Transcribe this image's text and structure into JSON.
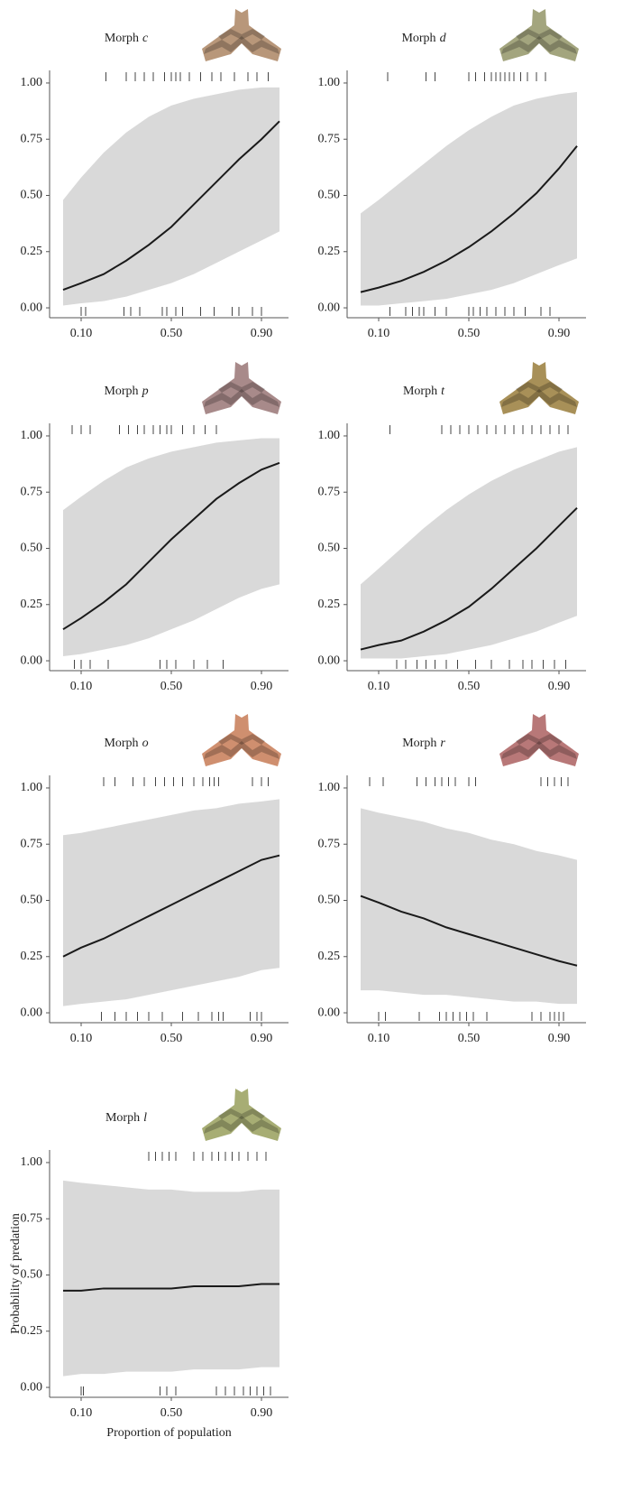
{
  "chart_data": [
    {
      "type": "line",
      "title": "Morph",
      "morph": "c",
      "moth_color": "#b8977a",
      "line_color": "#1a1a1a",
      "band_color": "#d9d9d9",
      "x": [
        0.02,
        0.1,
        0.2,
        0.3,
        0.4,
        0.5,
        0.6,
        0.7,
        0.8,
        0.9,
        0.98
      ],
      "values": [
        0.08,
        0.11,
        0.15,
        0.21,
        0.28,
        0.36,
        0.46,
        0.56,
        0.66,
        0.75,
        0.83
      ],
      "lower": [
        0.01,
        0.02,
        0.03,
        0.05,
        0.08,
        0.11,
        0.15,
        0.2,
        0.25,
        0.3,
        0.34
      ],
      "upper": [
        0.48,
        0.58,
        0.69,
        0.78,
        0.85,
        0.9,
        0.93,
        0.95,
        0.97,
        0.98,
        0.98
      ],
      "rug_top": [
        0.21,
        0.3,
        0.34,
        0.38,
        0.42,
        0.47,
        0.5,
        0.52,
        0.54,
        0.58,
        0.63,
        0.68,
        0.72,
        0.78,
        0.84,
        0.88,
        0.93
      ],
      "rug_bottom": [
        0.1,
        0.12,
        0.29,
        0.32,
        0.36,
        0.46,
        0.48,
        0.52,
        0.55,
        0.63,
        0.69,
        0.77,
        0.8,
        0.86,
        0.9
      ],
      "xlim": [
        -0.04,
        1.02
      ],
      "ylim": [
        -0.044,
        1.056
      ],
      "xticks": [
        {
          "value": 0.1,
          "label": "0.10"
        },
        {
          "value": 0.5,
          "label": "0.50"
        },
        {
          "value": 0.9,
          "label": "0.90"
        }
      ],
      "yticks": [
        {
          "value": 0,
          "label": "0.00"
        },
        {
          "value": 0.25,
          "label": "0.25"
        },
        {
          "value": 0.5,
          "label": "0.50"
        },
        {
          "value": 0.75,
          "label": "0.75"
        },
        {
          "value": 1,
          "label": "1.00"
        }
      ]
    },
    {
      "type": "line",
      "title": "Morph",
      "morph": "d",
      "moth_color": "#a3a57e",
      "line_color": "#1a1a1a",
      "band_color": "#d9d9d9",
      "x": [
        0.02,
        0.1,
        0.2,
        0.3,
        0.4,
        0.5,
        0.6,
        0.7,
        0.8,
        0.9,
        0.98
      ],
      "values": [
        0.07,
        0.09,
        0.12,
        0.16,
        0.21,
        0.27,
        0.34,
        0.42,
        0.51,
        0.62,
        0.72
      ],
      "lower": [
        0.01,
        0.01,
        0.02,
        0.03,
        0.04,
        0.06,
        0.08,
        0.11,
        0.15,
        0.19,
        0.22
      ],
      "upper": [
        0.42,
        0.48,
        0.56,
        0.64,
        0.72,
        0.79,
        0.85,
        0.9,
        0.93,
        0.95,
        0.96
      ],
      "rug_top": [
        0.14,
        0.31,
        0.35,
        0.5,
        0.53,
        0.57,
        0.6,
        0.62,
        0.64,
        0.66,
        0.68,
        0.7,
        0.73,
        0.76,
        0.8,
        0.84
      ],
      "rug_bottom": [
        0.15,
        0.22,
        0.25,
        0.28,
        0.3,
        0.35,
        0.4,
        0.5,
        0.52,
        0.55,
        0.58,
        0.62,
        0.66,
        0.7,
        0.75,
        0.82,
        0.86
      ],
      "xlim": [
        -0.04,
        1.02
      ],
      "ylim": [
        -0.044,
        1.056
      ],
      "xticks": [
        {
          "value": 0.1,
          "label": "0.10"
        },
        {
          "value": 0.5,
          "label": "0.50"
        },
        {
          "value": 0.9,
          "label": "0.90"
        }
      ],
      "yticks": [
        {
          "value": 0,
          "label": "0.00"
        },
        {
          "value": 0.25,
          "label": "0.25"
        },
        {
          "value": 0.5,
          "label": "0.50"
        },
        {
          "value": 0.75,
          "label": "0.75"
        },
        {
          "value": 1,
          "label": "1.00"
        }
      ]
    },
    {
      "type": "line",
      "title": "Morph",
      "morph": "p",
      "moth_color": "#a88a8a",
      "line_color": "#1a1a1a",
      "band_color": "#d9d9d9",
      "x": [
        0.02,
        0.1,
        0.2,
        0.3,
        0.4,
        0.5,
        0.6,
        0.7,
        0.8,
        0.9,
        0.98
      ],
      "values": [
        0.14,
        0.19,
        0.26,
        0.34,
        0.44,
        0.54,
        0.63,
        0.72,
        0.79,
        0.85,
        0.88
      ],
      "lower": [
        0.02,
        0.03,
        0.05,
        0.07,
        0.1,
        0.14,
        0.18,
        0.23,
        0.28,
        0.32,
        0.34
      ],
      "upper": [
        0.67,
        0.73,
        0.8,
        0.86,
        0.9,
        0.93,
        0.95,
        0.97,
        0.98,
        0.99,
        0.99
      ],
      "rug_top": [
        0.06,
        0.1,
        0.14,
        0.27,
        0.31,
        0.35,
        0.38,
        0.42,
        0.45,
        0.48,
        0.5,
        0.55,
        0.6,
        0.65,
        0.7
      ],
      "rug_bottom": [
        0.07,
        0.1,
        0.14,
        0.22,
        0.45,
        0.48,
        0.52,
        0.6,
        0.66,
        0.73
      ],
      "xlim": [
        -0.04,
        1.02
      ],
      "ylim": [
        -0.044,
        1.056
      ],
      "xticks": [
        {
          "value": 0.1,
          "label": "0.10"
        },
        {
          "value": 0.5,
          "label": "0.50"
        },
        {
          "value": 0.9,
          "label": "0.90"
        }
      ],
      "yticks": [
        {
          "value": 0,
          "label": "0.00"
        },
        {
          "value": 0.25,
          "label": "0.25"
        },
        {
          "value": 0.5,
          "label": "0.50"
        },
        {
          "value": 0.75,
          "label": "0.75"
        },
        {
          "value": 1,
          "label": "1.00"
        }
      ]
    },
    {
      "type": "line",
      "title": "Morph",
      "morph": "t",
      "moth_color": "#a89058",
      "line_color": "#1a1a1a",
      "band_color": "#d9d9d9",
      "x": [
        0.02,
        0.1,
        0.2,
        0.3,
        0.4,
        0.5,
        0.6,
        0.7,
        0.8,
        0.9,
        0.98
      ],
      "values": [
        0.05,
        0.07,
        0.09,
        0.13,
        0.18,
        0.24,
        0.32,
        0.41,
        0.5,
        0.6,
        0.68
      ],
      "lower": [
        0.01,
        0.01,
        0.01,
        0.02,
        0.03,
        0.05,
        0.07,
        0.1,
        0.13,
        0.17,
        0.2
      ],
      "upper": [
        0.34,
        0.41,
        0.5,
        0.59,
        0.67,
        0.74,
        0.8,
        0.85,
        0.89,
        0.93,
        0.95
      ],
      "rug_top": [
        0.15,
        0.38,
        0.42,
        0.46,
        0.5,
        0.54,
        0.58,
        0.62,
        0.66,
        0.7,
        0.74,
        0.78,
        0.82,
        0.86,
        0.9,
        0.94
      ],
      "rug_bottom": [
        0.18,
        0.22,
        0.27,
        0.31,
        0.35,
        0.4,
        0.45,
        0.53,
        0.6,
        0.68,
        0.74,
        0.78,
        0.83,
        0.88,
        0.93
      ],
      "xlim": [
        -0.04,
        1.02
      ],
      "ylim": [
        -0.044,
        1.056
      ],
      "xticks": [
        {
          "value": 0.1,
          "label": "0.10"
        },
        {
          "value": 0.5,
          "label": "0.50"
        },
        {
          "value": 0.9,
          "label": "0.90"
        }
      ],
      "yticks": [
        {
          "value": 0,
          "label": "0.00"
        },
        {
          "value": 0.25,
          "label": "0.25"
        },
        {
          "value": 0.5,
          "label": "0.50"
        },
        {
          "value": 0.75,
          "label": "0.75"
        },
        {
          "value": 1,
          "label": "1.00"
        }
      ]
    },
    {
      "type": "line",
      "title": "Morph",
      "morph": "o",
      "moth_color": "#cf8f6f",
      "line_color": "#1a1a1a",
      "band_color": "#d9d9d9",
      "x": [
        0.02,
        0.1,
        0.2,
        0.3,
        0.4,
        0.5,
        0.6,
        0.7,
        0.8,
        0.9,
        0.98
      ],
      "values": [
        0.25,
        0.29,
        0.33,
        0.38,
        0.43,
        0.48,
        0.53,
        0.58,
        0.63,
        0.68,
        0.7
      ],
      "lower": [
        0.03,
        0.04,
        0.05,
        0.06,
        0.08,
        0.1,
        0.12,
        0.14,
        0.16,
        0.19,
        0.2
      ],
      "upper": [
        0.79,
        0.8,
        0.82,
        0.84,
        0.86,
        0.88,
        0.9,
        0.91,
        0.93,
        0.94,
        0.95
      ],
      "rug_top": [
        0.2,
        0.25,
        0.33,
        0.38,
        0.43,
        0.47,
        0.51,
        0.55,
        0.6,
        0.64,
        0.67,
        0.69,
        0.71,
        0.86,
        0.9,
        0.93
      ],
      "rug_bottom": [
        0.19,
        0.25,
        0.3,
        0.35,
        0.4,
        0.46,
        0.55,
        0.62,
        0.68,
        0.71,
        0.73,
        0.85,
        0.88,
        0.9
      ],
      "xlim": [
        -0.04,
        1.02
      ],
      "ylim": [
        -0.044,
        1.056
      ],
      "xticks": [
        {
          "value": 0.1,
          "label": "0.10"
        },
        {
          "value": 0.5,
          "label": "0.50"
        },
        {
          "value": 0.9,
          "label": "0.90"
        }
      ],
      "yticks": [
        {
          "value": 0,
          "label": "0.00"
        },
        {
          "value": 0.25,
          "label": "0.25"
        },
        {
          "value": 0.5,
          "label": "0.50"
        },
        {
          "value": 0.75,
          "label": "0.75"
        },
        {
          "value": 1,
          "label": "1.00"
        }
      ]
    },
    {
      "type": "line",
      "title": "Morph",
      "morph": "r",
      "moth_color": "#b87878",
      "line_color": "#1a1a1a",
      "band_color": "#d9d9d9",
      "x": [
        0.02,
        0.1,
        0.2,
        0.3,
        0.4,
        0.5,
        0.6,
        0.7,
        0.8,
        0.9,
        0.98
      ],
      "values": [
        0.52,
        0.49,
        0.45,
        0.42,
        0.38,
        0.35,
        0.32,
        0.29,
        0.26,
        0.23,
        0.21
      ],
      "lower": [
        0.1,
        0.1,
        0.09,
        0.08,
        0.08,
        0.07,
        0.06,
        0.05,
        0.05,
        0.04,
        0.04
      ],
      "upper": [
        0.91,
        0.89,
        0.87,
        0.85,
        0.82,
        0.8,
        0.77,
        0.75,
        0.72,
        0.7,
        0.68
      ],
      "rug_top": [
        0.06,
        0.12,
        0.27,
        0.31,
        0.35,
        0.38,
        0.41,
        0.44,
        0.5,
        0.53,
        0.82,
        0.85,
        0.88,
        0.91,
        0.94
      ],
      "rug_bottom": [
        0.1,
        0.13,
        0.28,
        0.37,
        0.4,
        0.43,
        0.46,
        0.49,
        0.52,
        0.58,
        0.78,
        0.82,
        0.86,
        0.88,
        0.9,
        0.92
      ],
      "xlim": [
        -0.04,
        1.02
      ],
      "ylim": [
        -0.044,
        1.056
      ],
      "xticks": [
        {
          "value": 0.1,
          "label": "0.10"
        },
        {
          "value": 0.5,
          "label": "0.50"
        },
        {
          "value": 0.9,
          "label": "0.90"
        }
      ],
      "yticks": [
        {
          "value": 0,
          "label": "0.00"
        },
        {
          "value": 0.25,
          "label": "0.25"
        },
        {
          "value": 0.5,
          "label": "0.50"
        },
        {
          "value": 0.75,
          "label": "0.75"
        },
        {
          "value": 1,
          "label": "1.00"
        }
      ]
    },
    {
      "type": "line",
      "title": "Morph",
      "morph": "l",
      "moth_color": "#a7ad74",
      "line_color": "#1a1a1a",
      "band_color": "#d9d9d9",
      "x_label": "Proportion of population",
      "y_label": "Probability of predation",
      "x": [
        0.02,
        0.1,
        0.2,
        0.3,
        0.4,
        0.5,
        0.6,
        0.7,
        0.8,
        0.9,
        0.98
      ],
      "values": [
        0.43,
        0.43,
        0.44,
        0.44,
        0.44,
        0.44,
        0.45,
        0.45,
        0.45,
        0.46,
        0.46
      ],
      "lower": [
        0.05,
        0.06,
        0.06,
        0.07,
        0.07,
        0.07,
        0.08,
        0.08,
        0.08,
        0.09,
        0.09
      ],
      "upper": [
        0.92,
        0.91,
        0.9,
        0.89,
        0.88,
        0.88,
        0.87,
        0.87,
        0.87,
        0.88,
        0.88
      ],
      "rug_top": [
        0.4,
        0.43,
        0.46,
        0.49,
        0.52,
        0.6,
        0.64,
        0.68,
        0.71,
        0.74,
        0.77,
        0.8,
        0.84,
        0.88,
        0.92
      ],
      "rug_bottom": [
        0.1,
        0.11,
        0.45,
        0.48,
        0.52,
        0.7,
        0.74,
        0.78,
        0.82,
        0.85,
        0.88,
        0.91,
        0.94
      ],
      "xlim": [
        -0.04,
        1.02
      ],
      "ylim": [
        -0.044,
        1.056
      ],
      "xticks": [
        {
          "value": 0.1,
          "label": "0.10"
        },
        {
          "value": 0.5,
          "label": "0.50"
        },
        {
          "value": 0.9,
          "label": "0.90"
        }
      ],
      "yticks": [
        {
          "value": 0,
          "label": "0.00"
        },
        {
          "value": 0.25,
          "label": "0.25"
        },
        {
          "value": 0.5,
          "label": "0.50"
        },
        {
          "value": 0.75,
          "label": "0.75"
        },
        {
          "value": 1,
          "label": "1.00"
        }
      ]
    }
  ]
}
